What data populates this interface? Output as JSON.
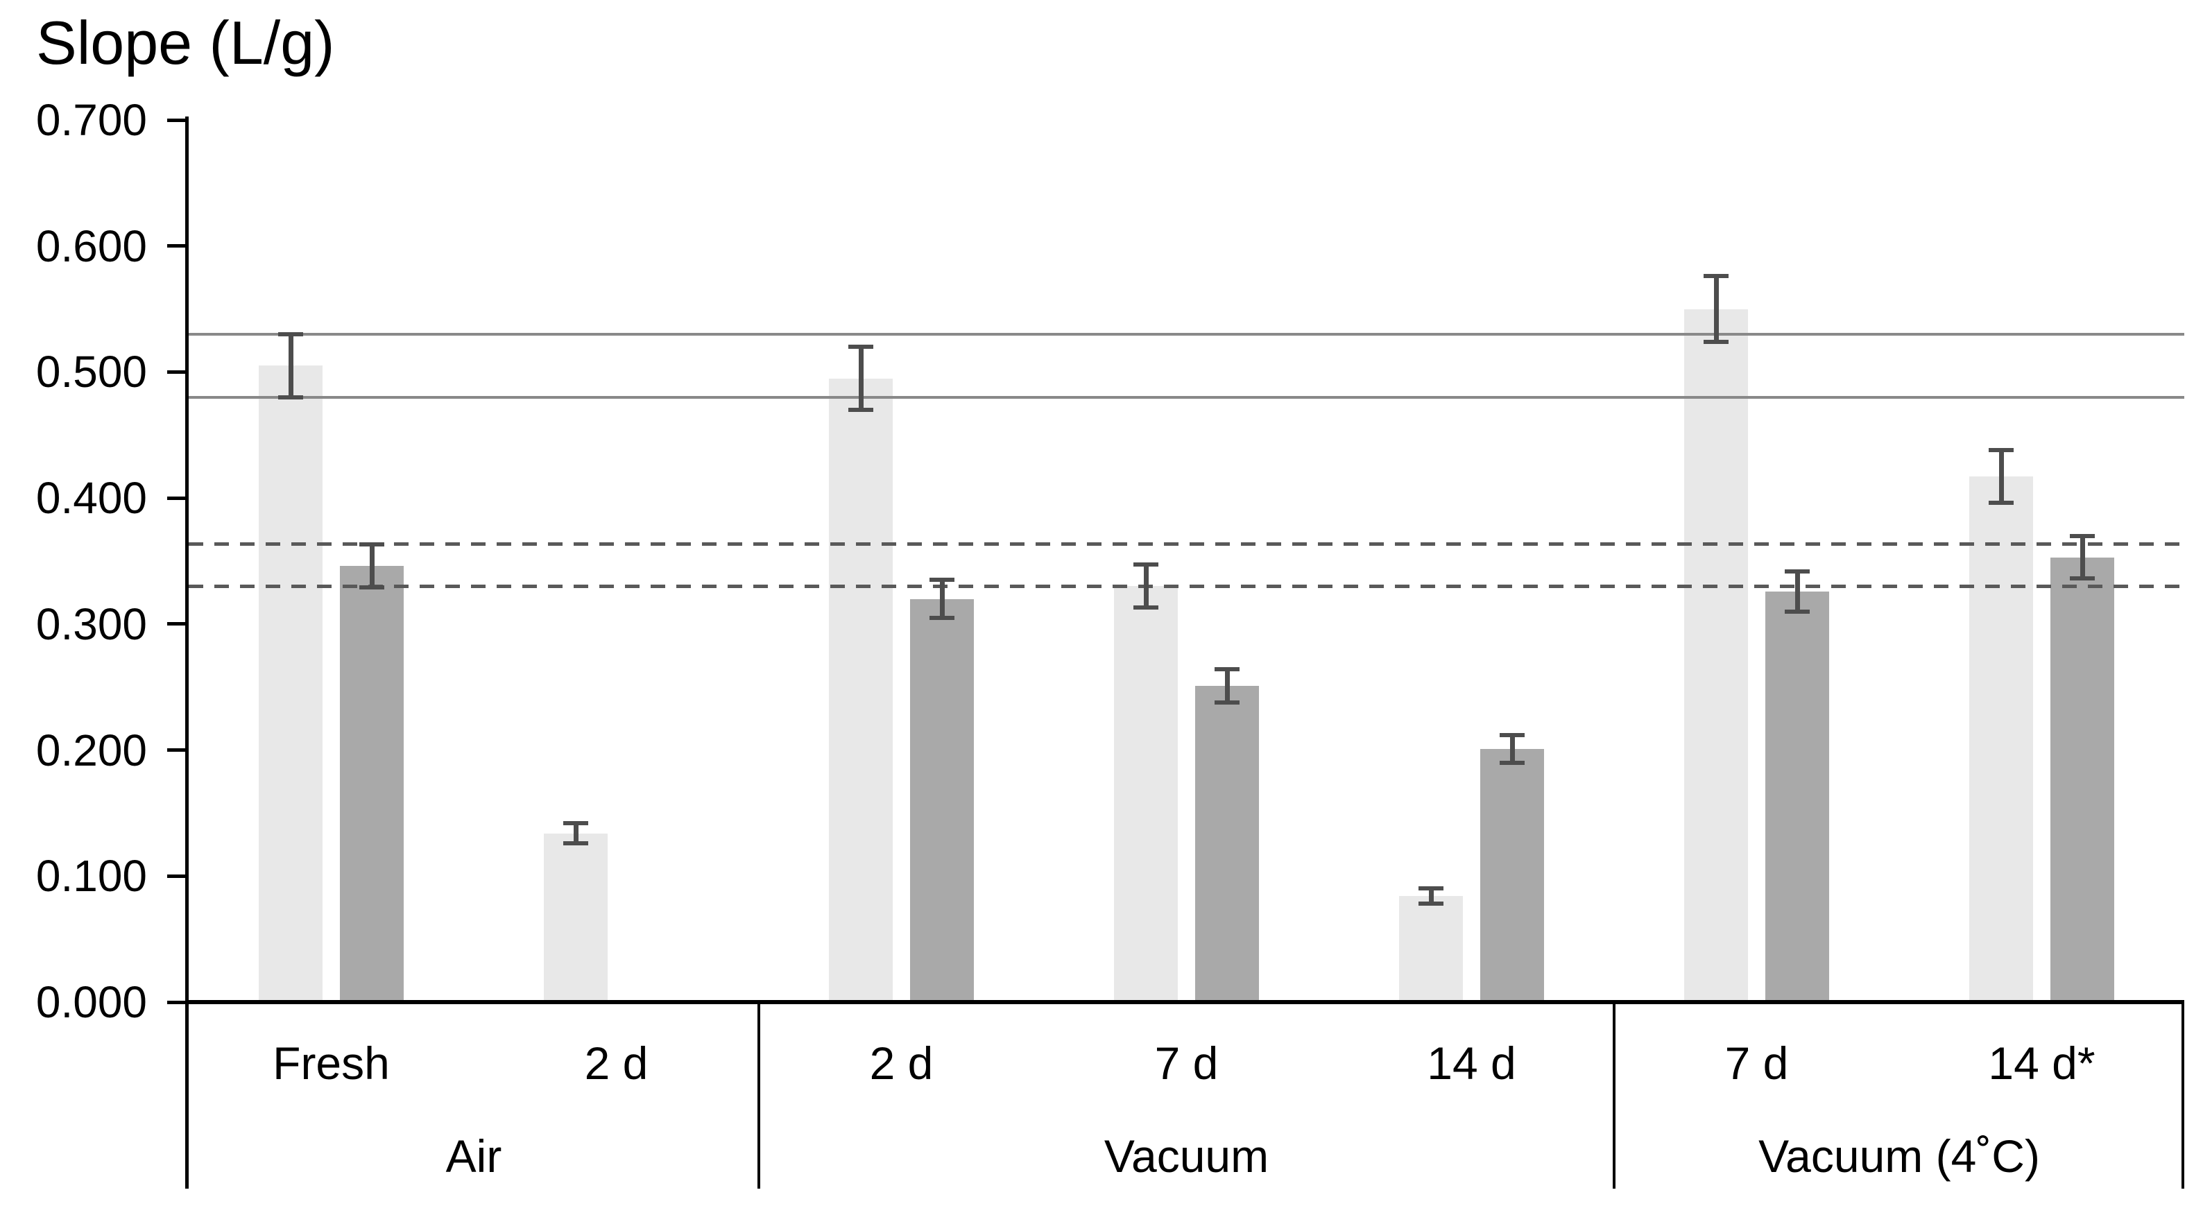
{
  "chart_data": {
    "type": "bar",
    "title": "Slope (L/g)",
    "ylabel": "Slope (L/g)",
    "xlabel": "",
    "ylim": [
      0.0,
      0.7
    ],
    "ytick_step": 0.1,
    "yticks": [
      {
        "value": 0.0,
        "label": "0.000"
      },
      {
        "value": 0.1,
        "label": "0.100"
      },
      {
        "value": 0.2,
        "label": "0.200"
      },
      {
        "value": 0.3,
        "label": "0.300"
      },
      {
        "value": 0.4,
        "label": "0.400"
      },
      {
        "value": 0.5,
        "label": "0.500"
      },
      {
        "value": 0.6,
        "label": "0.600"
      },
      {
        "value": 0.7,
        "label": "0.700"
      }
    ],
    "grid": false,
    "legend_position": "none",
    "series": [
      "light",
      "dark"
    ],
    "groups": [
      {
        "label": "Air",
        "categories": [
          {
            "label": "Fresh",
            "bars": [
              {
                "series": "light",
                "value": 0.505,
                "error": 0.025
              },
              {
                "series": "dark",
                "value": 0.346,
                "error": 0.017
              }
            ]
          },
          {
            "label": "2 d",
            "bars": [
              {
                "series": "light",
                "value": 0.134,
                "error": 0.008
              }
            ]
          }
        ]
      },
      {
        "label": "Vacuum",
        "categories": [
          {
            "label": "2 d",
            "bars": [
              {
                "series": "light",
                "value": 0.495,
                "error": 0.025
              },
              {
                "series": "dark",
                "value": 0.32,
                "error": 0.015
              }
            ]
          },
          {
            "label": "7 d",
            "bars": [
              {
                "series": "light",
                "value": 0.33,
                "error": 0.017
              },
              {
                "series": "dark",
                "value": 0.251,
                "error": 0.013
              }
            ]
          },
          {
            "label": "14 d",
            "bars": [
              {
                "series": "light",
                "value": 0.084,
                "error": 0.006
              },
              {
                "series": "dark",
                "value": 0.201,
                "error": 0.011
              }
            ]
          }
        ]
      },
      {
        "label": "Vacuum (4˚C)",
        "categories": [
          {
            "label": "7 d",
            "bars": [
              {
                "series": "light",
                "value": 0.55,
                "error": 0.026
              },
              {
                "series": "dark",
                "value": 0.326,
                "error": 0.016
              }
            ]
          },
          {
            "label": "14 d*",
            "bars": [
              {
                "series": "light",
                "value": 0.417,
                "error": 0.021
              },
              {
                "series": "dark",
                "value": 0.353,
                "error": 0.017
              }
            ]
          }
        ]
      }
    ],
    "reference_lines": [
      {
        "value": 0.53,
        "style": "solid"
      },
      {
        "value": 0.48,
        "style": "solid"
      },
      {
        "value": 0.364,
        "style": "dashed"
      },
      {
        "value": 0.33,
        "style": "dashed"
      }
    ],
    "colors": {
      "light_bar": "#e8e8e8",
      "dark_bar": "#a9a9a9",
      "error_bar": "#4d4d4d",
      "solid_ref_line": "#898989",
      "dashed_ref_line": "#595959",
      "axis": "#000000",
      "background": "#ffffff"
    }
  }
}
